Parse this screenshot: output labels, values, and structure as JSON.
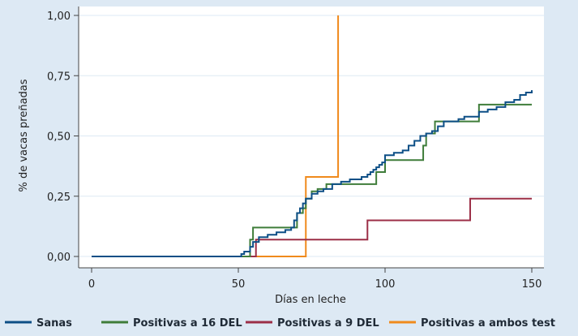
{
  "chart_data": {
    "type": "line",
    "title": "",
    "xlabel": "Días en leche",
    "ylabel": "% de vacas preñadas",
    "xlim": [
      0,
      150
    ],
    "ylim": [
      0,
      1
    ],
    "x_ticks": [
      "0",
      "50",
      "100",
      "150"
    ],
    "y_ticks": [
      "0,00",
      "0,25",
      "0,50",
      "0,75",
      "1,00"
    ],
    "grid": true,
    "legend_position": "bottom",
    "series": [
      {
        "name": "Sanas",
        "color": "#0d4f86",
        "step": true,
        "points": [
          [
            0,
            0
          ],
          [
            50,
            0
          ],
          [
            51,
            0.01
          ],
          [
            52,
            0.02
          ],
          [
            54,
            0.04
          ],
          [
            55,
            0.06
          ],
          [
            57,
            0.08
          ],
          [
            60,
            0.09
          ],
          [
            63,
            0.1
          ],
          [
            66,
            0.11
          ],
          [
            68,
            0.12
          ],
          [
            69,
            0.15
          ],
          [
            70,
            0.18
          ],
          [
            71,
            0.2
          ],
          [
            72,
            0.22
          ],
          [
            73,
            0.24
          ],
          [
            75,
            0.26
          ],
          [
            77,
            0.27
          ],
          [
            79,
            0.28
          ],
          [
            82,
            0.3
          ],
          [
            85,
            0.31
          ],
          [
            88,
            0.32
          ],
          [
            92,
            0.33
          ],
          [
            94,
            0.34
          ],
          [
            95,
            0.35
          ],
          [
            96,
            0.36
          ],
          [
            97,
            0.37
          ],
          [
            98,
            0.38
          ],
          [
            99,
            0.39
          ],
          [
            100,
            0.42
          ],
          [
            103,
            0.43
          ],
          [
            106,
            0.44
          ],
          [
            108,
            0.46
          ],
          [
            110,
            0.48
          ],
          [
            112,
            0.5
          ],
          [
            114,
            0.51
          ],
          [
            116,
            0.52
          ],
          [
            118,
            0.54
          ],
          [
            120,
            0.56
          ],
          [
            125,
            0.57
          ],
          [
            127,
            0.58
          ],
          [
            132,
            0.6
          ],
          [
            135,
            0.61
          ],
          [
            138,
            0.62
          ],
          [
            141,
            0.64
          ],
          [
            144,
            0.65
          ],
          [
            146,
            0.67
          ],
          [
            148,
            0.68
          ],
          [
            150,
            0.69
          ]
        ]
      },
      {
        "name": "Positivas a 16 DEL",
        "color": "#3f7d3a",
        "step": true,
        "points": [
          [
            0,
            0
          ],
          [
            54,
            0
          ],
          [
            54,
            0.07
          ],
          [
            55,
            0.12
          ],
          [
            68,
            0.12
          ],
          [
            70,
            0.18
          ],
          [
            72,
            0.2
          ],
          [
            73,
            0.24
          ],
          [
            75,
            0.27
          ],
          [
            77,
            0.28
          ],
          [
            80,
            0.3
          ],
          [
            97,
            0.35
          ],
          [
            100,
            0.4
          ],
          [
            113,
            0.46
          ],
          [
            114,
            0.51
          ],
          [
            117,
            0.56
          ],
          [
            132,
            0.63
          ],
          [
            150,
            0.63
          ]
        ]
      },
      {
        "name": "Positivas a 9 DEL",
        "color": "#9c2f47",
        "step": true,
        "points": [
          [
            0,
            0
          ],
          [
            55,
            0
          ],
          [
            56,
            0.07
          ],
          [
            94,
            0.15
          ],
          [
            129,
            0.24
          ],
          [
            150,
            0.24
          ]
        ]
      },
      {
        "name": "Positivas a ambos test",
        "color": "#f08a1c",
        "step": true,
        "points": [
          [
            0,
            0
          ],
          [
            73,
            0
          ],
          [
            73,
            0.33
          ],
          [
            84,
            1.0
          ]
        ]
      }
    ]
  }
}
